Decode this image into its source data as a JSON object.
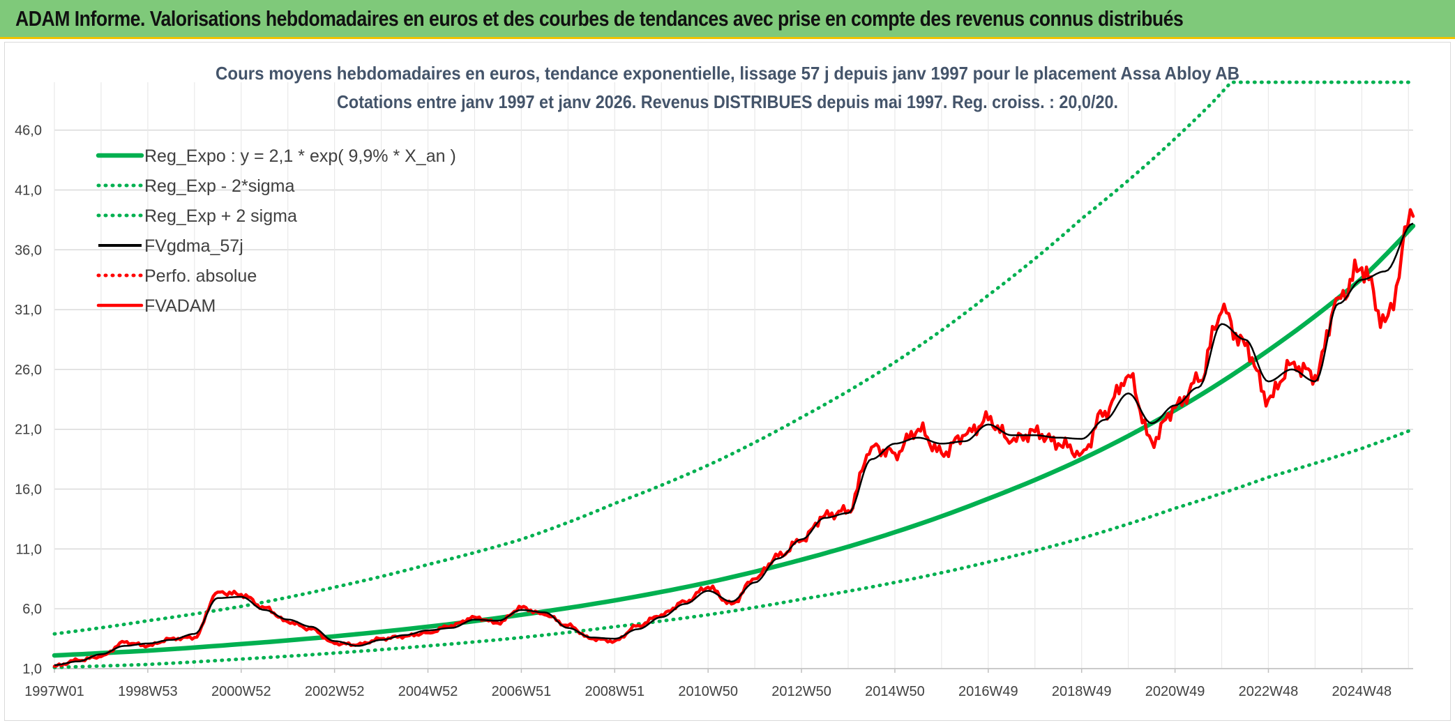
{
  "banner": {
    "title": "ADAM Informe. Valorisations hebdomadaires en euros et des courbes de tendances avec prise en compte des revenus connus distribués"
  },
  "colors": {
    "banner_bg": "#7fc97a",
    "banner_border": "#f2c200",
    "trend": "#00b050",
    "price": "#ff0000",
    "smooth": "#000000"
  },
  "chart_data": {
    "type": "line",
    "title": "Cours moyens hebdomadaires en euros, tendance exponentielle, lissage 57 j depuis janv 1997 pour le placement Assa Abloy AB",
    "subtitle": "Cotations entre janv 1997 et janv 2026. Revenus DISTRIBUES depuis mai 1997. Reg. croiss. : 20,0/20.",
    "xlabel": "",
    "ylabel": "",
    "ylim": [
      1.0,
      50.0
    ],
    "xlim": [
      1997.0,
      2026.1
    ],
    "yticks": [
      "46,0",
      "41,0",
      "36,0",
      "31,0",
      "26,0",
      "21,0",
      "16,0",
      "11,0",
      "6,0",
      "1,0"
    ],
    "ytick_values": [
      46,
      41,
      36,
      31,
      26,
      21,
      16,
      11,
      6,
      1
    ],
    "xticks": [
      "1997W01",
      "1998W53",
      "2000W52",
      "2002W52",
      "2004W52",
      "2006W51",
      "2008W51",
      "2010W50",
      "2012W50",
      "2014W50",
      "2016W49",
      "2018W49",
      "2020W49",
      "2022W48",
      "2024W48"
    ],
    "xtick_values": [
      1997.0,
      1999.0,
      2001.0,
      2003.0,
      2005.0,
      2007.0,
      2009.0,
      2011.0,
      2013.0,
      2015.0,
      2017.0,
      2019.0,
      2021.0,
      2023.0,
      2025.0
    ],
    "grid": true,
    "legend_position": "top-left",
    "series": [
      {
        "name": "Reg_Expo : y = 2,1 * exp( 9,9% *  X_an )",
        "style": "solid-thick",
        "color": "#00b050",
        "x": [
          1997.0,
          1999.0,
          2001.0,
          2003.0,
          2005.0,
          2007.0,
          2009.0,
          2011.0,
          2013.0,
          2015.0,
          2017.0,
          2019.0,
          2021.0,
          2023.0,
          2025.0,
          2026.1
        ],
        "y": [
          2.1,
          2.5,
          3.05,
          3.7,
          4.5,
          5.5,
          6.7,
          8.2,
          10.1,
          12.4,
          15.2,
          18.5,
          22.6,
          27.6,
          33.6,
          38.0
        ]
      },
      {
        "name": "Reg_Exp - 2*sigma",
        "style": "dotted",
        "color": "#00b050",
        "x": [
          1997.0,
          1999.0,
          2001.0,
          2003.0,
          2005.0,
          2007.0,
          2009.0,
          2011.0,
          2013.0,
          2015.0,
          2017.0,
          2019.0,
          2021.0,
          2023.0,
          2025.0,
          2026.1
        ],
        "y": [
          1.1,
          1.35,
          1.8,
          2.3,
          2.9,
          3.6,
          4.5,
          5.5,
          6.8,
          8.2,
          9.9,
          11.9,
          14.4,
          17.0,
          19.4,
          21.0
        ]
      },
      {
        "name": "Reg_Exp + 2 sigma",
        "style": "dotted",
        "color": "#00b050",
        "x": [
          1997.0,
          1999.0,
          2001.0,
          2003.0,
          2005.0,
          2007.0,
          2009.0,
          2011.0,
          2013.0,
          2015.0,
          2017.0,
          2019.0,
          2020.5,
          2021.8,
          2022.2,
          2026.1
        ],
        "y": [
          3.9,
          5.0,
          6.2,
          7.8,
          9.7,
          11.8,
          14.8,
          18.0,
          22.0,
          26.6,
          32.2,
          38.6,
          43.5,
          48.3,
          50.0,
          50.0
        ]
      },
      {
        "name": "FVgdma_57j",
        "style": "solid",
        "color": "#000000",
        "x": [
          1997.0,
          1997.5,
          1998.0,
          1998.5,
          1999.0,
          1999.5,
          2000.0,
          2000.5,
          2001.0,
          2001.5,
          2002.0,
          2002.5,
          2003.0,
          2003.5,
          2004.0,
          2004.5,
          2005.0,
          2005.5,
          2006.0,
          2006.5,
          2007.0,
          2007.5,
          2008.0,
          2008.5,
          2009.0,
          2009.5,
          2010.0,
          2010.5,
          2011.0,
          2011.5,
          2012.0,
          2012.5,
          2013.0,
          2013.5,
          2014.0,
          2014.5,
          2015.0,
          2015.5,
          2016.0,
          2016.5,
          2017.0,
          2017.5,
          2018.0,
          2018.5,
          2019.0,
          2019.5,
          2020.0,
          2020.5,
          2021.0,
          2021.5,
          2022.0,
          2022.5,
          2023.0,
          2023.5,
          2024.0,
          2024.5,
          2025.0,
          2025.5,
          2026.1
        ],
        "y": [
          1.3,
          1.6,
          2.2,
          2.9,
          3.1,
          3.4,
          3.9,
          6.9,
          7.0,
          5.9,
          5.1,
          4.5,
          3.3,
          2.9,
          3.4,
          3.8,
          4.2,
          4.4,
          5.1,
          5.0,
          5.9,
          5.7,
          4.4,
          3.6,
          3.5,
          4.3,
          5.3,
          6.4,
          7.5,
          6.6,
          8.2,
          10.2,
          11.8,
          13.6,
          14.0,
          18.5,
          19.8,
          20.3,
          19.8,
          20.0,
          21.4,
          20.5,
          20.5,
          20.3,
          20.2,
          21.8,
          24.0,
          21.5,
          23.0,
          24.5,
          29.8,
          28.5,
          25.0,
          26.0,
          25.0,
          31.5,
          33.5,
          34.2,
          38.2
        ]
      },
      {
        "name": "Perfo. absolue",
        "style": "dotted",
        "color": "#ff0000",
        "x": [],
        "y": []
      },
      {
        "name": "FVADAM",
        "style": "solid-thick",
        "color": "#ff0000",
        "x": [
          1997.0,
          1997.5,
          1998.0,
          1998.5,
          1999.0,
          1999.5,
          2000.0,
          2000.5,
          2001.0,
          2001.5,
          2002.0,
          2002.5,
          2003.0,
          2003.5,
          2004.0,
          2004.5,
          2005.0,
          2005.5,
          2006.0,
          2006.5,
          2007.0,
          2007.5,
          2008.0,
          2008.5,
          2009.0,
          2009.5,
          2010.0,
          2010.5,
          2011.0,
          2011.5,
          2012.0,
          2012.5,
          2013.0,
          2013.5,
          2014.0,
          2014.5,
          2015.0,
          2015.5,
          2016.0,
          2016.5,
          2017.0,
          2017.5,
          2018.0,
          2018.5,
          2019.0,
          2019.5,
          2020.0,
          2020.5,
          2021.0,
          2021.5,
          2022.0,
          2022.5,
          2023.0,
          2023.5,
          2024.0,
          2024.5,
          2025.0,
          2025.5,
          2026.1
        ],
        "y": [
          1.2,
          1.7,
          2.0,
          3.2,
          2.9,
          3.5,
          3.6,
          7.4,
          7.2,
          6.1,
          4.9,
          4.3,
          3.1,
          3.0,
          3.5,
          3.7,
          4.0,
          4.6,
          5.3,
          4.8,
          6.1,
          5.5,
          4.6,
          3.5,
          3.3,
          4.6,
          5.5,
          6.6,
          7.8,
          6.4,
          8.5,
          10.4,
          11.7,
          13.8,
          14.2,
          19.5,
          19.0,
          21.0,
          19.0,
          20.5,
          21.8,
          20.0,
          20.8,
          19.8,
          19.0,
          22.5,
          25.5,
          20.0,
          22.8,
          25.0,
          30.8,
          28.0,
          23.5,
          26.5,
          25.5,
          32.0,
          34.5,
          30.0,
          38.8
        ]
      }
    ]
  }
}
